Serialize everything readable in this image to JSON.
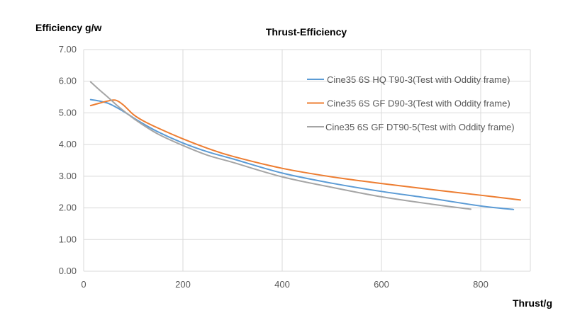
{
  "chart_data": {
    "type": "line",
    "title": "Thrust-Efficiency",
    "xlabel": "Thrust/g",
    "ylabel": "Efficiency g/w",
    "xlim": [
      0,
      900
    ],
    "ylim": [
      0,
      7
    ],
    "xticks": [
      0,
      200,
      400,
      600,
      800
    ],
    "xtick_labels": [
      "0",
      "200",
      "400",
      "600",
      "800"
    ],
    "yticks": [
      0,
      1,
      2,
      3,
      4,
      5,
      6,
      7
    ],
    "ytick_labels": [
      "0.00",
      "1.00",
      "2.00",
      "3.00",
      "4.00",
      "5.00",
      "6.00",
      "7.00"
    ],
    "grid": true,
    "legend_position": "top-right",
    "series": [
      {
        "name": "Cine35 6S HQ T90-3(Test with Oddity frame)",
        "color": "#5B9BD5",
        "x": [
          14,
          30,
          50,
          70,
          90,
          110,
          150,
          200,
          250,
          300,
          400,
          500,
          600,
          700,
          800,
          866
        ],
        "y": [
          5.42,
          5.38,
          5.3,
          5.14,
          4.95,
          4.75,
          4.4,
          4.05,
          3.77,
          3.55,
          3.1,
          2.78,
          2.52,
          2.3,
          2.06,
          1.95
        ]
      },
      {
        "name": "Cine35 6S GF D90-3(Test with Oddity frame)",
        "color": "#ED7D31",
        "x": [
          14,
          30,
          50,
          65,
          80,
          100,
          120,
          150,
          200,
          250,
          300,
          400,
          500,
          600,
          700,
          800,
          880
        ],
        "y": [
          5.23,
          5.3,
          5.38,
          5.4,
          5.25,
          4.95,
          4.75,
          4.52,
          4.18,
          3.88,
          3.63,
          3.25,
          2.98,
          2.77,
          2.58,
          2.4,
          2.25
        ]
      },
      {
        "name": "Cine35 6S GF DT90-5(Test with Oddity frame)",
        "color": "#A5A5A5",
        "x": [
          14,
          30,
          50,
          70,
          90,
          110,
          150,
          200,
          250,
          300,
          400,
          500,
          600,
          700,
          780
        ],
        "y": [
          5.98,
          5.75,
          5.48,
          5.2,
          4.95,
          4.72,
          4.33,
          3.97,
          3.66,
          3.44,
          2.98,
          2.65,
          2.35,
          2.12,
          1.96
        ]
      }
    ]
  }
}
